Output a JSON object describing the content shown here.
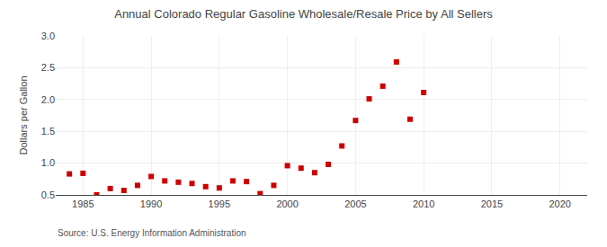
{
  "chart_data": {
    "type": "scatter",
    "title": "Annual Colorado Regular Gasoline Wholesale/Resale Price by All Sellers",
    "ylabel": "Dollars per Gallon",
    "annotations": [
      "Source: U.S. Energy Information Administration"
    ],
    "x": [
      1984,
      1985,
      1986,
      1987,
      1988,
      1989,
      1990,
      1991,
      1992,
      1993,
      1994,
      1995,
      1996,
      1997,
      1998,
      1999,
      2000,
      2001,
      2002,
      2003,
      2004,
      2005,
      2006,
      2007,
      2008,
      2009,
      2010
    ],
    "values": [
      0.83,
      0.84,
      0.5,
      0.6,
      0.57,
      0.65,
      0.79,
      0.72,
      0.7,
      0.68,
      0.63,
      0.61,
      0.72,
      0.71,
      0.52,
      0.65,
      0.96,
      0.92,
      0.85,
      0.98,
      1.27,
      1.67,
      2.01,
      2.21,
      2.59,
      1.69,
      2.11
    ],
    "color": "#cc0000",
    "marker": "square",
    "xlim": [
      1983,
      2022
    ],
    "ylim": [
      0.5,
      3.0
    ],
    "xticks": [
      1985,
      1990,
      1995,
      2000,
      2005,
      2010,
      2015,
      2020
    ],
    "yticks": [
      0.5,
      {
        "value": 1.0,
        "label": "1.0"
      },
      1.5,
      {
        "value": 2.0,
        "label": "2.0"
      },
      2.5,
      {
        "value": 3.0,
        "label": "3.0"
      }
    ],
    "grid": true
  }
}
